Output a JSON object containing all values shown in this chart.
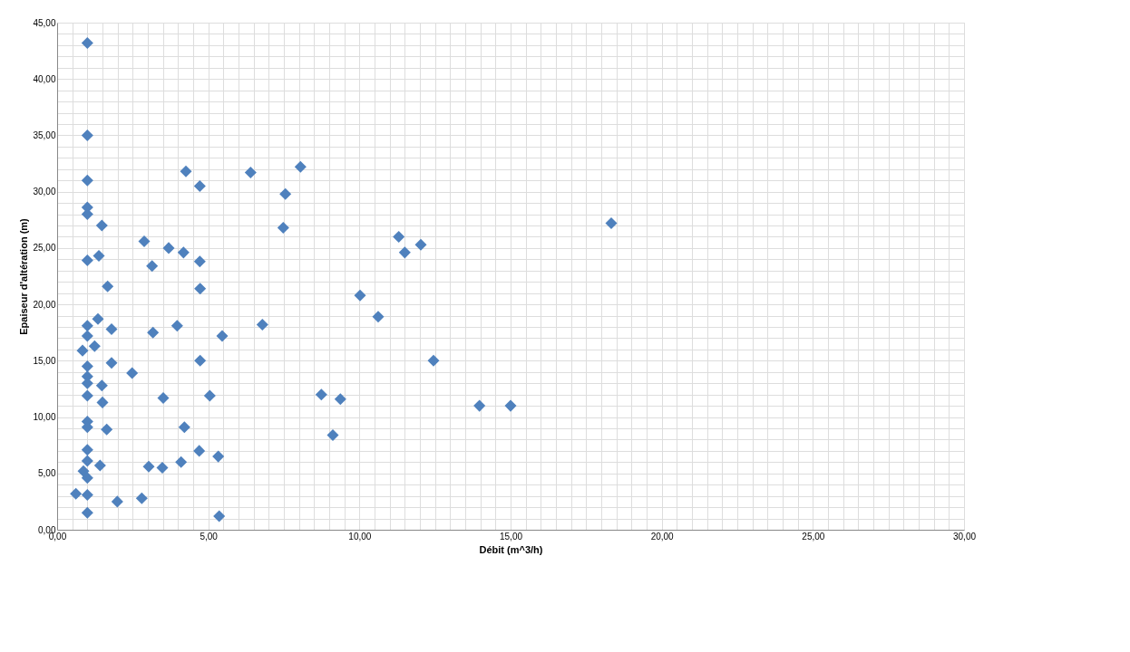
{
  "chart_data": {
    "type": "scatter",
    "xlabel": "Débit (m^3/h)",
    "ylabel": "Epaiseur d'altération (m)",
    "marker": "diamond",
    "grid": true,
    "legend": false,
    "xlim": [
      0,
      30
    ],
    "ylim": [
      0,
      45
    ],
    "xticks": [
      {
        "value": 0,
        "label": "0,00"
      },
      {
        "value": 0.5,
        "label": null
      },
      {
        "value": 1,
        "label": null
      },
      {
        "value": 1.5,
        "label": null
      },
      {
        "value": 2,
        "label": null
      },
      {
        "value": 2.5,
        "label": null
      },
      {
        "value": 3,
        "label": null
      },
      {
        "value": 3.5,
        "label": null
      },
      {
        "value": 4,
        "label": null
      },
      {
        "value": 4.5,
        "label": null
      },
      {
        "value": 5,
        "label": "5,00"
      },
      {
        "value": 5.5,
        "label": null
      },
      {
        "value": 6,
        "label": null
      },
      {
        "value": 6.5,
        "label": null
      },
      {
        "value": 7,
        "label": null
      },
      {
        "value": 7.5,
        "label": null
      },
      {
        "value": 8,
        "label": null
      },
      {
        "value": 8.5,
        "label": null
      },
      {
        "value": 9,
        "label": null
      },
      {
        "value": 9.5,
        "label": null
      },
      {
        "value": 10,
        "label": "10,00"
      },
      {
        "value": 10.5,
        "label": null
      },
      {
        "value": 11,
        "label": null
      },
      {
        "value": 11.5,
        "label": null
      },
      {
        "value": 12,
        "label": null
      },
      {
        "value": 12.5,
        "label": null
      },
      {
        "value": 13,
        "label": null
      },
      {
        "value": 13.5,
        "label": null
      },
      {
        "value": 14,
        "label": null
      },
      {
        "value": 14.5,
        "label": null
      },
      {
        "value": 15,
        "label": "15,00"
      },
      {
        "value": 15.5,
        "label": null
      },
      {
        "value": 16,
        "label": null
      },
      {
        "value": 16.5,
        "label": null
      },
      {
        "value": 17,
        "label": null
      },
      {
        "value": 17.5,
        "label": null
      },
      {
        "value": 18,
        "label": null
      },
      {
        "value": 18.5,
        "label": null
      },
      {
        "value": 19,
        "label": null
      },
      {
        "value": 19.5,
        "label": null
      },
      {
        "value": 20,
        "label": "20,00"
      },
      {
        "value": 20.5,
        "label": null
      },
      {
        "value": 21,
        "label": null
      },
      {
        "value": 21.5,
        "label": null
      },
      {
        "value": 22,
        "label": null
      },
      {
        "value": 22.5,
        "label": null
      },
      {
        "value": 23,
        "label": null
      },
      {
        "value": 23.5,
        "label": null
      },
      {
        "value": 24,
        "label": null
      },
      {
        "value": 24.5,
        "label": null
      },
      {
        "value": 25,
        "label": "25,00"
      },
      {
        "value": 25.5,
        "label": null
      },
      {
        "value": 26,
        "label": null
      },
      {
        "value": 26.5,
        "label": null
      },
      {
        "value": 27,
        "label": null
      },
      {
        "value": 27.5,
        "label": null
      },
      {
        "value": 28,
        "label": null
      },
      {
        "value": 28.5,
        "label": null
      },
      {
        "value": 29,
        "label": null
      },
      {
        "value": 29.5,
        "label": null
      },
      {
        "value": 30,
        "label": "30,00"
      }
    ],
    "yticks": [
      {
        "value": 0,
        "label": "0,00"
      },
      {
        "value": 1,
        "label": null
      },
      {
        "value": 2,
        "label": null
      },
      {
        "value": 3,
        "label": null
      },
      {
        "value": 4,
        "label": null
      },
      {
        "value": 5,
        "label": "5,00"
      },
      {
        "value": 6,
        "label": null
      },
      {
        "value": 7,
        "label": null
      },
      {
        "value": 8,
        "label": null
      },
      {
        "value": 9,
        "label": null
      },
      {
        "value": 10,
        "label": "10,00"
      },
      {
        "value": 11,
        "label": null
      },
      {
        "value": 12,
        "label": null
      },
      {
        "value": 13,
        "label": null
      },
      {
        "value": 14,
        "label": null
      },
      {
        "value": 15,
        "label": "15,00"
      },
      {
        "value": 16,
        "label": null
      },
      {
        "value": 17,
        "label": null
      },
      {
        "value": 18,
        "label": null
      },
      {
        "value": 19,
        "label": null
      },
      {
        "value": 20,
        "label": "20,00"
      },
      {
        "value": 21,
        "label": null
      },
      {
        "value": 22,
        "label": null
      },
      {
        "value": 23,
        "label": null
      },
      {
        "value": 24,
        "label": null
      },
      {
        "value": 25,
        "label": "25,00"
      },
      {
        "value": 26,
        "label": null
      },
      {
        "value": 27,
        "label": null
      },
      {
        "value": 28,
        "label": null
      },
      {
        "value": 29,
        "label": null
      },
      {
        "value": 30,
        "label": "30,00"
      },
      {
        "value": 31,
        "label": null
      },
      {
        "value": 32,
        "label": null
      },
      {
        "value": 33,
        "label": null
      },
      {
        "value": 34,
        "label": null
      },
      {
        "value": 35,
        "label": "35,00"
      },
      {
        "value": 36,
        "label": null
      },
      {
        "value": 37,
        "label": null
      },
      {
        "value": 38,
        "label": null
      },
      {
        "value": 39,
        "label": null
      },
      {
        "value": 40,
        "label": "40,00"
      },
      {
        "value": 41,
        "label": null
      },
      {
        "value": 42,
        "label": null
      },
      {
        "value": 43,
        "label": null
      },
      {
        "value": 44,
        "label": null
      },
      {
        "value": 45,
        "label": "45,00"
      }
    ],
    "series": [
      {
        "color": "#4f81bd",
        "x": [
          1.0,
          1.0,
          1.0,
          4.26,
          4.72,
          6.4,
          1.0,
          1.0,
          1.48,
          2.88,
          3.69,
          4.18,
          1.0,
          1.38,
          4.72,
          3.14,
          1.67,
          4.73,
          1.35,
          1.0,
          1.8,
          3.17,
          3.97,
          5.46,
          1.0,
          1.24,
          0.84,
          1.0,
          1.8,
          4.73,
          2.48,
          1.0,
          1.0,
          1.48,
          1.0,
          1.5,
          3.51,
          5.05,
          1.0,
          1.0,
          1.64,
          4.21,
          4.7,
          1.0,
          5.33,
          1.0,
          1.42,
          3.03,
          3.48,
          4.1,
          0.87,
          1.0,
          0.62,
          1.0,
          1.99,
          2.8,
          1.0,
          5.36,
          8.05,
          7.55,
          7.48,
          11.3,
          11.5,
          12.03,
          10.02,
          10.62,
          6.79,
          12.45,
          8.74,
          9.37,
          9.12,
          13.97,
          15.0,
          18.33
        ],
        "values": [
          43.2,
          35.0,
          31.0,
          31.8,
          30.5,
          31.7,
          28.6,
          28.0,
          27.0,
          25.6,
          25.0,
          24.6,
          23.9,
          24.3,
          23.8,
          23.4,
          21.6,
          21.4,
          18.7,
          18.1,
          17.8,
          17.5,
          18.1,
          17.2,
          17.2,
          16.3,
          15.9,
          14.5,
          14.8,
          15.0,
          13.9,
          13.6,
          13.0,
          12.8,
          11.9,
          11.3,
          11.7,
          11.9,
          9.6,
          9.1,
          8.9,
          9.1,
          7.0,
          7.1,
          6.5,
          6.1,
          5.7,
          5.6,
          5.5,
          6.0,
          5.2,
          4.6,
          3.2,
          3.1,
          2.5,
          2.8,
          1.5,
          1.2,
          32.2,
          29.8,
          26.8,
          26.0,
          24.6,
          25.3,
          20.8,
          18.9,
          18.2,
          15.0,
          12.0,
          11.6,
          8.4,
          11.0,
          11.0,
          27.2
        ]
      }
    ]
  }
}
